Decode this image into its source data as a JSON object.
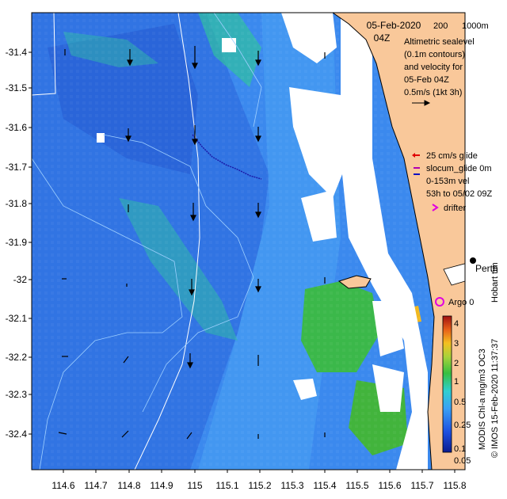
{
  "map": {
    "date": "05-Feb-2020",
    "time": "04Z",
    "depth_contours": [
      "200",
      "1000m"
    ],
    "legend_lines": [
      "Altimetric sealevel",
      "(0.1m contours)",
      "and velocity for",
      "05-Feb 04Z",
      "0.5m/s (1kt 3h)"
    ],
    "glider_lines": [
      "25 cm/s glide",
      "slocum_glide 0m",
      "0-153m vel",
      "53h to 05/02 09Z"
    ],
    "drifter_label": "drifter",
    "argo_label": "Argo 0",
    "city_label": "Perth",
    "hobart_label": "Hobart tim",
    "credit": "© IMOS 15-Feb-2020 11:37:37",
    "colorbar_title": "MODIS Chl-a mg/m3 OC3",
    "colorbar_ticks": [
      "4",
      "3",
      "2",
      "1",
      "0.5",
      "0.25",
      "0.1",
      "0.05"
    ],
    "lat_ticks": [
      "-31.4",
      "-31.5",
      "-31.6",
      "-31.7",
      "-31.8",
      "-31.9",
      "-32",
      "-32.1",
      "-32.2",
      "-32.3",
      "-32.4"
    ],
    "lon_ticks": [
      "114.6",
      "114.7",
      "114.8",
      "114.9",
      "115",
      "115.1",
      "115.2",
      "115.3",
      "115.4",
      "115.5",
      "115.6",
      "115.7",
      "115.8"
    ],
    "colors": {
      "land": "#f9c89a",
      "ocean_deep": "#2f6fe0",
      "ocean_mid": "#3d8ff0",
      "chl_high": "#3cb63c"
    }
  }
}
